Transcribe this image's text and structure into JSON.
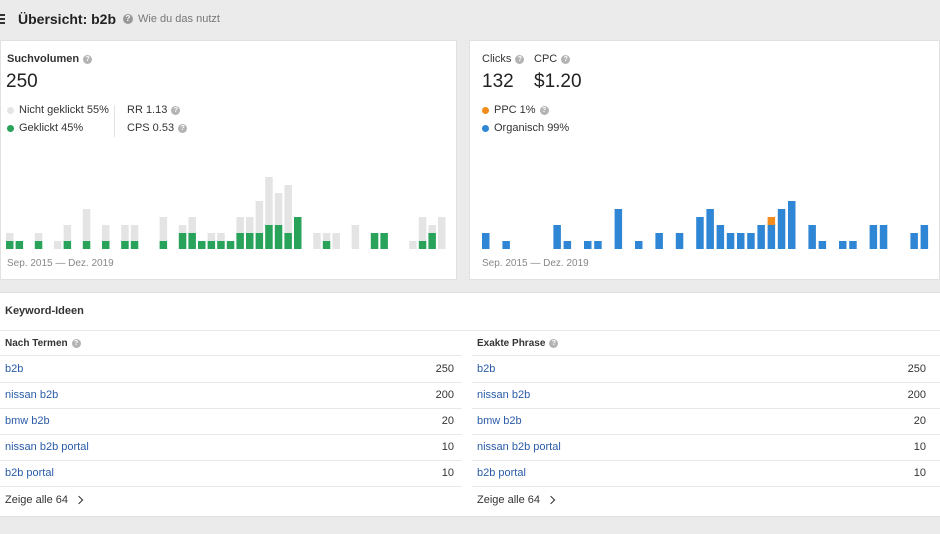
{
  "header": {
    "title": "Übersicht: b2b",
    "help": "Wie du das nutzt"
  },
  "volume_card": {
    "label": "Suchvolumen",
    "value": "250",
    "legend": [
      {
        "label": "Nicht geklickt 55%",
        "color": "#e4e4e4"
      },
      {
        "label": "Geklickt 45%",
        "color": "#29a35a"
      }
    ],
    "rr": "RR 1.13",
    "cps": "CPS 0.53",
    "date_range": "Sep. 2015 — Dez. 2019"
  },
  "clicks_card": {
    "clicks_label": "Clicks",
    "cpc_label": "CPC",
    "clicks_value": "132",
    "cpc_value": "$1.20",
    "legend": [
      {
        "label": "PPC 1%",
        "color": "#f28c1c"
      },
      {
        "label": "Organisch 99%",
        "color": "#2f86d4"
      }
    ],
    "date_range": "Sep. 2015 — Dez. 2019"
  },
  "keyword_ideas": {
    "title": "Keyword-Ideen",
    "columns": [
      {
        "heading": "Nach Termen",
        "rows": [
          {
            "keyword": "b2b",
            "volume": "250"
          },
          {
            "keyword": "nissan b2b",
            "volume": "200"
          },
          {
            "keyword": "bmw b2b",
            "volume": "20"
          },
          {
            "keyword": "nissan b2b portal",
            "volume": "10"
          },
          {
            "keyword": "b2b portal",
            "volume": "10"
          }
        ],
        "show_all": "Zeige alle 64"
      },
      {
        "heading": "Exakte Phrase",
        "rows": [
          {
            "keyword": "b2b",
            "volume": "250"
          },
          {
            "keyword": "nissan b2b",
            "volume": "200"
          },
          {
            "keyword": "bmw b2b",
            "volume": "20"
          },
          {
            "keyword": "nissan b2b portal",
            "volume": "10"
          },
          {
            "keyword": "b2b portal",
            "volume": "10"
          }
        ],
        "show_all": "Zeige alle 64"
      }
    ]
  },
  "chart_data": [
    {
      "type": "bar",
      "stacked": true,
      "ylim": [
        0,
        100
      ],
      "series": [
        {
          "color": "#29a35a",
          "values": [
            10,
            10,
            0,
            10,
            0,
            0,
            10,
            0,
            10,
            0,
            10,
            0,
            10,
            10,
            0,
            0,
            10,
            0,
            20,
            20,
            10,
            10,
            10,
            10,
            20,
            20,
            20,
            30,
            30,
            20,
            40,
            0,
            0,
            10,
            0,
            0,
            0,
            0,
            20,
            20,
            0,
            0,
            0,
            10,
            20,
            0
          ]
        },
        {
          "color": "#e4e4e4",
          "values": [
            10,
            0,
            0,
            10,
            0,
            10,
            20,
            0,
            40,
            0,
            20,
            0,
            20,
            20,
            0,
            0,
            30,
            0,
            10,
            20,
            0,
            10,
            10,
            0,
            20,
            20,
            40,
            60,
            40,
            60,
            0,
            0,
            20,
            10,
            20,
            0,
            30,
            0,
            0,
            0,
            0,
            0,
            10,
            30,
            10,
            40
          ]
        }
      ]
    },
    {
      "type": "bar",
      "stacked": true,
      "ylim": [
        0,
        100
      ],
      "series": [
        {
          "color": "#2f86d4",
          "values": [
            20,
            0,
            10,
            0,
            0,
            0,
            0,
            30,
            10,
            0,
            10,
            10,
            0,
            50,
            0,
            10,
            0,
            20,
            0,
            20,
            0,
            40,
            50,
            30,
            20,
            20,
            20,
            30,
            30,
            50,
            60,
            0,
            30,
            10,
            0,
            10,
            10,
            0,
            30,
            30,
            0,
            0,
            20,
            30
          ]
        },
        {
          "color": "#f28c1c",
          "values": [
            0,
            0,
            0,
            0,
            0,
            0,
            0,
            0,
            0,
            0,
            0,
            0,
            0,
            0,
            0,
            0,
            0,
            0,
            0,
            0,
            0,
            0,
            0,
            0,
            0,
            0,
            0,
            0,
            10,
            0,
            0,
            0,
            0,
            0,
            0,
            0,
            0,
            0,
            0,
            0,
            0,
            0,
            0,
            0
          ]
        }
      ]
    }
  ]
}
